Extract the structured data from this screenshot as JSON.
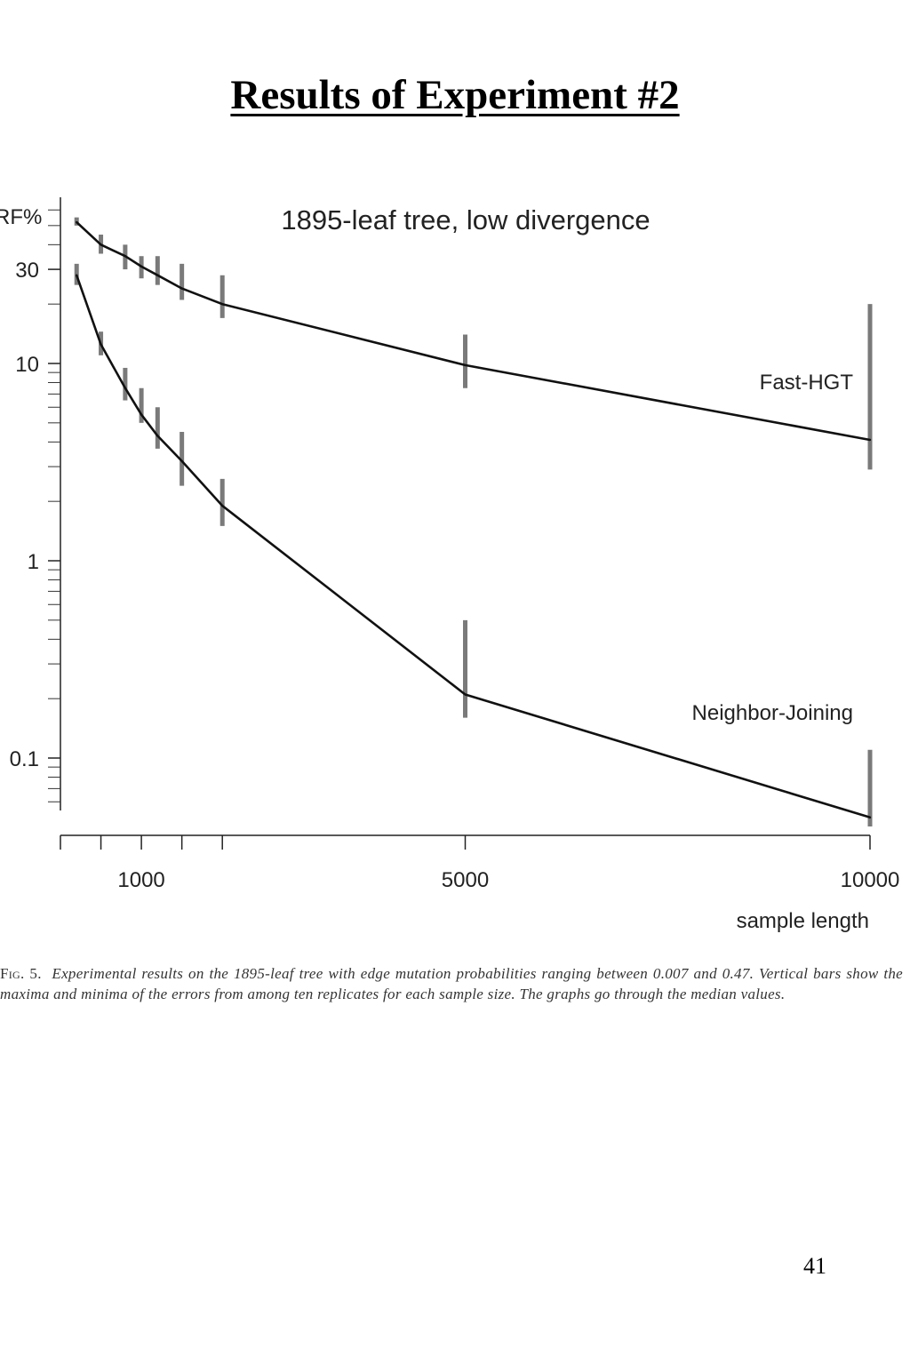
{
  "slide": {
    "title": "Results of Experiment #2",
    "page_number": "41"
  },
  "caption": {
    "label": "Fig. 5.",
    "text": "Experimental results on the 1895-leaf tree with edge mutation probabilities ranging between 0.007 and 0.47. Vertical bars show the maxima and minima of the errors from among ten replicates for each sample size. The graphs go through the median values."
  },
  "chart_data": {
    "type": "line",
    "title": "1895-leaf tree, low divergence",
    "xlabel": "sample length",
    "ylabel": "RF%",
    "yscale": "log",
    "xlim": [
      0,
      10000
    ],
    "ylim": [
      0.05,
      60
    ],
    "xticks": [
      {
        "value": 1000,
        "label": "1000"
      },
      {
        "value": 5000,
        "label": "5000"
      },
      {
        "value": 10000,
        "label": "10000"
      }
    ],
    "xticks_minor": [
      0,
      500,
      1000,
      1500,
      2000,
      5000,
      10000
    ],
    "yticks": [
      {
        "value": 0.1,
        "label": "0.1"
      },
      {
        "value": 1,
        "label": "1"
      },
      {
        "value": 10,
        "label": "10"
      },
      {
        "value": 30,
        "label": "30"
      }
    ],
    "grid": false,
    "legend": "none",
    "line_color": "#111111",
    "errorbar_color": "#7a7a7a",
    "series": [
      {
        "name": "Fast-HGT",
        "x": [
          200,
          500,
          800,
          1000,
          1200,
          1500,
          2000,
          5000,
          10000
        ],
        "y": [
          52,
          40,
          35,
          31,
          28,
          24,
          20,
          9.8,
          4.1
        ],
        "ymin": [
          50,
          36,
          30,
          27,
          25,
          21,
          17,
          7.5,
          2.9
        ],
        "ymax": [
          55,
          45,
          40,
          35,
          35,
          32,
          28,
          14,
          20
        ]
      },
      {
        "name": "Neighbor-Joining",
        "x": [
          200,
          500,
          800,
          1000,
          1200,
          1500,
          2000,
          5000,
          10000
        ],
        "y": [
          28,
          12.5,
          7.5,
          5.5,
          4.3,
          3.2,
          1.9,
          0.21,
          0.05
        ],
        "ymin": [
          25,
          11,
          6.5,
          5.0,
          3.7,
          2.4,
          1.5,
          0.16,
          0.045
        ],
        "ymax": [
          32,
          14.5,
          9.5,
          7.5,
          6.0,
          4.5,
          2.6,
          0.5,
          0.11
        ]
      }
    ]
  }
}
